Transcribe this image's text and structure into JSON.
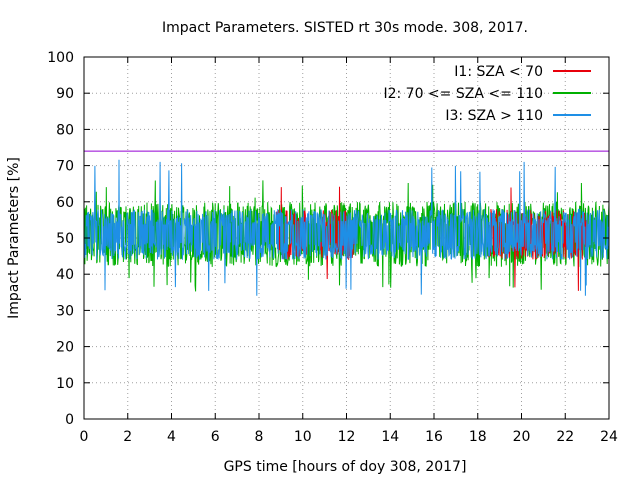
{
  "chart_data": {
    "type": "line",
    "title": "Impact Parameters. SISTED rt 30s mode. 308, 2017.",
    "xlabel": "GPS time [hours of doy 308, 2017]",
    "ylabel": "Impact Parameters [%]",
    "xlim": [
      0,
      24
    ],
    "ylim": [
      0,
      100
    ],
    "xticks": [
      0,
      2,
      4,
      6,
      8,
      10,
      12,
      14,
      16,
      18,
      20,
      22,
      24
    ],
    "yticks": [
      0,
      10,
      20,
      30,
      40,
      50,
      60,
      70,
      80,
      90,
      100
    ],
    "grid": true,
    "legend_position": "top-right",
    "reference_line": {
      "y": 74,
      "color": "#9400d3"
    },
    "series": [
      {
        "name": "I1: SZA < 70",
        "color": "#e8000b",
        "mean": 51,
        "typical_min": 44,
        "typical_max": 58,
        "extreme_min": 35,
        "extreme_max": 65,
        "x_ranges": [
          [
            8.8,
            10.2
          ],
          [
            10.8,
            12.4
          ],
          [
            18.5,
            23.0
          ]
        ]
      },
      {
        "name": "I2: 70 <= SZA <= 110",
        "color": "#00b000",
        "mean": 51,
        "typical_min": 42,
        "typical_max": 60,
        "extreme_min": 35,
        "extreme_max": 66,
        "x_ranges": [
          [
            0.0,
            24.0
          ]
        ]
      },
      {
        "name": "I3: SZA > 110",
        "color": "#1e8fe6",
        "mean": 51,
        "typical_min": 44,
        "typical_max": 58,
        "extreme_min": 34,
        "extreme_max": 72,
        "x_ranges": [
          [
            0.0,
            24.0
          ]
        ]
      }
    ]
  }
}
